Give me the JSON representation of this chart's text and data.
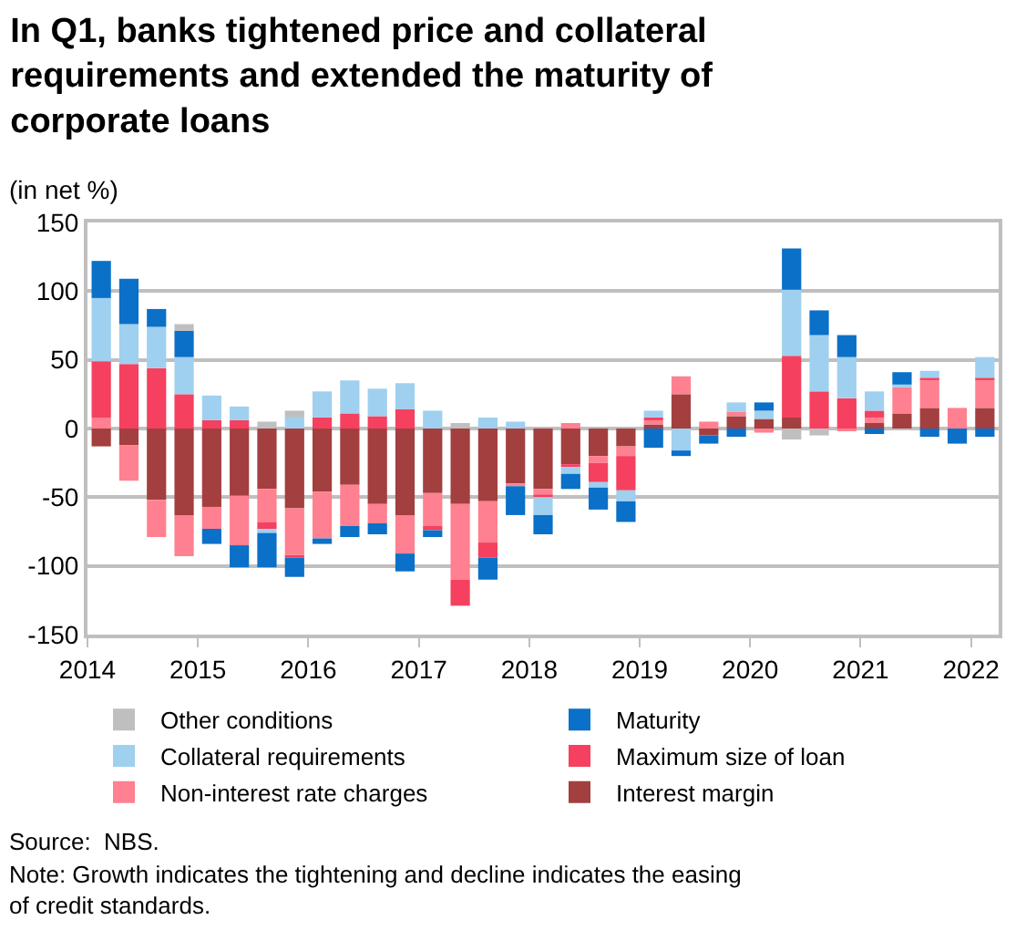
{
  "chart_data": {
    "type": "bar",
    "stacked": true,
    "title": "In Q1, banks tightened price and collateral requirements and extended the maturity of corporate loans",
    "subtitle": "(in net %)",
    "x": [
      2014.125,
      2014.375,
      2014.625,
      2014.875,
      2015.125,
      2015.375,
      2015.625,
      2015.875,
      2016.125,
      2016.375,
      2016.625,
      2016.875,
      2017.125,
      2017.375,
      2017.625,
      2017.875,
      2018.125,
      2018.375,
      2018.625,
      2018.875,
      2019.125,
      2019.375,
      2019.625,
      2019.875,
      2020.125,
      2020.375,
      2020.625,
      2020.875,
      2021.125,
      2021.375,
      2021.625,
      2021.875,
      2022.125
    ],
    "xlim": [
      2014,
      2022.25
    ],
    "xticks": [
      2014,
      2015,
      2016,
      2017,
      2018,
      2019,
      2020,
      2021,
      2022
    ],
    "ylim": [
      -150,
      150
    ],
    "yticks": [
      -150,
      -100,
      -50,
      0,
      50,
      100,
      150
    ],
    "grid": "y",
    "legend": "bottom",
    "series": [
      {
        "name": "Interest margin",
        "color": "#a33f3f",
        "values": [
          -13,
          -12,
          -52,
          -63,
          -57,
          -49,
          -44,
          -58,
          -46,
          -41,
          -55,
          -63,
          -47,
          -55,
          -53,
          -40,
          -44,
          -26,
          -20,
          -13,
          3,
          25,
          -5,
          9,
          7,
          8,
          null,
          null,
          4,
          11,
          15,
          null,
          15
        ]
      },
      {
        "name": "Non-interest rate charges",
        "color": "#ff8090",
        "values": [
          8,
          -26,
          -27,
          -30,
          -16,
          -36,
          -24,
          -34,
          -34,
          -30,
          -14,
          -28,
          -24,
          -55,
          -30,
          -2,
          -4,
          4,
          -5,
          -7,
          3,
          13,
          5,
          3,
          -3,
          null,
          null,
          -2,
          4,
          19,
          20,
          15,
          20
        ]
      },
      {
        "name": "Maximum size of loan",
        "color": "#f5405f",
        "values": [
          41,
          47,
          44,
          25,
          6,
          6,
          -5,
          -2,
          8,
          11,
          9,
          14,
          -3,
          -19,
          -11,
          null,
          -2,
          -2,
          -14,
          -25,
          2,
          null,
          null,
          null,
          null,
          45,
          27,
          22,
          5,
          null,
          2,
          null,
          2
        ]
      },
      {
        "name": "Collateral requirements",
        "color": "#9fd0ef",
        "values": [
          46,
          29,
          30,
          27,
          18,
          10,
          -3,
          8,
          19,
          24,
          20,
          19,
          13,
          null,
          8,
          5,
          -13,
          -5,
          -4,
          -8,
          5,
          -16,
          null,
          7,
          6,
          48,
          41,
          30,
          14,
          2,
          5,
          null,
          15
        ]
      },
      {
        "name": "Maturity",
        "color": "#0a70c8",
        "values": [
          27,
          33,
          13,
          19,
          -11,
          -16,
          -25,
          -14,
          -4,
          -8,
          -8,
          -13,
          -5,
          null,
          -16,
          -21,
          -14,
          -11,
          -16,
          -15,
          -14,
          -4,
          -6,
          -6,
          6,
          30,
          18,
          16,
          -4,
          9,
          -6,
          -11,
          -6
        ]
      },
      {
        "name": "Other conditions",
        "color": "#bfbfbf",
        "values": [
          null,
          null,
          null,
          5,
          null,
          null,
          5,
          5,
          null,
          null,
          null,
          null,
          null,
          4,
          null,
          null,
          null,
          null,
          null,
          null,
          null,
          null,
          null,
          null,
          null,
          -8,
          -5,
          null,
          null,
          null,
          null,
          null,
          null
        ]
      }
    ],
    "annotations": [
      "Source:  NBS.",
      "Note: Growth indicates the tightening and decline indicates the easing of credit standards."
    ]
  }
}
